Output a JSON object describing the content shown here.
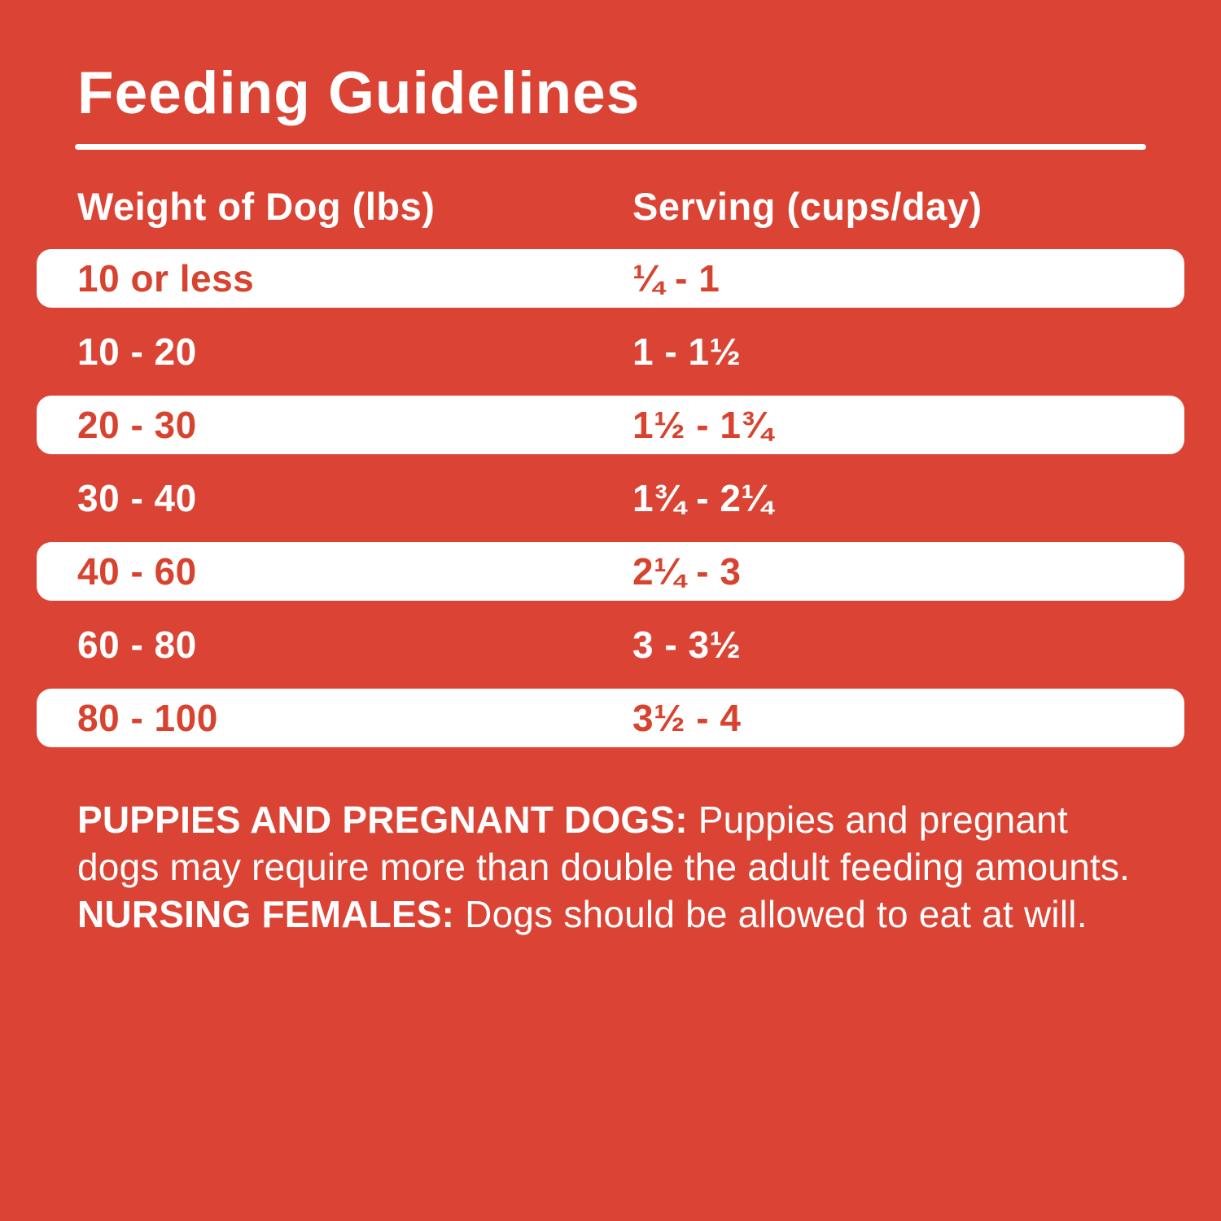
{
  "title": "Feeding Guidelines",
  "colors": {
    "background_red": "#DB4434",
    "row_text_red": "#D7432F",
    "white": "#FFFFFF"
  },
  "table": {
    "columns": [
      "Weight of Dog (lbs)",
      "Serving (cups/day)"
    ],
    "rows": [
      {
        "weight": "10 or less",
        "serving": "¼ - 1"
      },
      {
        "weight": "10 - 20",
        "serving": "1 - 1½"
      },
      {
        "weight": "20 - 30",
        "serving": "1½ - 1¾"
      },
      {
        "weight": "30 - 40",
        "serving": "1¾ - 2¼"
      },
      {
        "weight": "40 - 60",
        "serving": "2¼ - 3"
      },
      {
        "weight": "60 - 80",
        "serving": "3 - 3½"
      },
      {
        "weight": "80 - 100",
        "serving": "3½ - 4"
      }
    ]
  },
  "footnote": {
    "bold1": "PUPPIES AND PREGNANT DOGS:",
    "text1": " Puppies and pregnant dogs may require more than double the adult feeding amounts. ",
    "bold2": "NURSING FEMALES:",
    "text2": " Dogs should be allowed to eat at will."
  }
}
